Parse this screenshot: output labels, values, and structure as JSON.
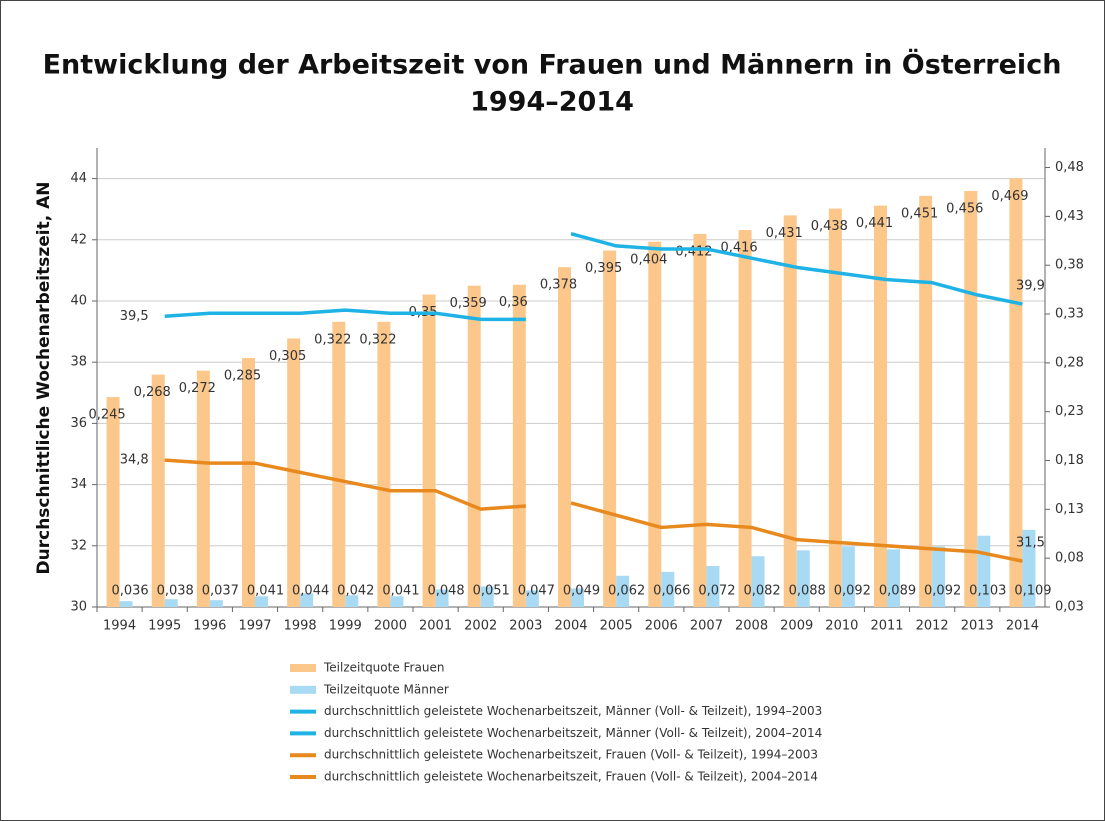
{
  "chart_data": {
    "type": "bar",
    "title": [
      "Entwicklung der Arbeitszeit von Frauen und Männern  in Österreich",
      "1994–2014"
    ],
    "ylabel": "Durchschnittliche Wochenarbeitszeit, AN",
    "categories": [
      "1994",
      "1995",
      "1996",
      "1997",
      "1998",
      "1999",
      "2000",
      "2001",
      "2002",
      "2003",
      "2004",
      "2005",
      "2006",
      "2007",
      "2008",
      "2009",
      "2010",
      "2011",
      "2012",
      "2013",
      "2014"
    ],
    "ylim": [
      30,
      45
    ],
    "yticks": [
      30,
      32,
      34,
      36,
      38,
      40,
      42,
      44
    ],
    "y2lim": [
      0.03,
      0.5
    ],
    "y2ticks": [
      {
        "value": 0.03,
        "label": "0,03"
      },
      {
        "value": 0.08,
        "label": "0,08"
      },
      {
        "value": 0.13,
        "label": "0,13"
      },
      {
        "value": 0.18,
        "label": "0,18"
      },
      {
        "value": 0.23,
        "label": "0,23"
      },
      {
        "value": 0.28,
        "label": "0,28"
      },
      {
        "value": 0.33,
        "label": "0,33"
      },
      {
        "value": 0.38,
        "label": "0,38"
      },
      {
        "value": 0.43,
        "label": "0,43"
      },
      {
        "value": 0.48,
        "label": "0,48"
      }
    ],
    "grid": true,
    "legend": "bottom",
    "series": [
      {
        "name": "Teilzeitquote Frauen",
        "type": "bar",
        "axis": "y2",
        "color": "#fbc78b",
        "values": [
          0.245,
          0.268,
          0.272,
          0.285,
          0.305,
          0.322,
          0.322,
          0.35,
          0.359,
          0.36,
          0.378,
          0.395,
          0.404,
          0.412,
          0.416,
          0.431,
          0.438,
          0.441,
          0.451,
          0.456,
          0.469
        ],
        "value_labels": [
          "0,245",
          "0,268",
          "0,272",
          "0,285",
          "0,305",
          "0,322",
          "0,322",
          "0,35",
          "0,359",
          "0,36",
          "0,378",
          "0,395",
          "0,404",
          "0,412",
          "0,416",
          "0,431",
          "0,438",
          "0,441",
          "0,451",
          "0,456",
          "0,469"
        ]
      },
      {
        "name": "Teilzeitquote Männer",
        "type": "bar",
        "axis": "y2",
        "color": "#a8daf4",
        "values": [
          0.036,
          0.038,
          0.037,
          0.041,
          0.044,
          0.042,
          0.041,
          0.048,
          0.051,
          0.047,
          0.049,
          0.062,
          0.066,
          0.072,
          0.082,
          0.088,
          0.092,
          0.089,
          0.092,
          0.103,
          0.109
        ],
        "value_labels": [
          "0,036",
          "0,038",
          "0,037",
          "0,041",
          "0,044",
          "0,042",
          "0,041",
          "0,048",
          "0,051",
          "0,047",
          "0,049",
          "0,062",
          "0,066",
          "0,072",
          "0,082",
          "0,088",
          "0,092",
          "0,089",
          "0,092",
          "0,103",
          "0,109"
        ]
      },
      {
        "name": "durchschnittlich geleistete Wochenarbeitszeit, Männer (Voll- & Teilzeit), 1994–2003",
        "type": "line",
        "color": "#1fb3e5",
        "values": [
          null,
          39.5,
          39.6,
          39.6,
          39.6,
          39.7,
          39.6,
          39.6,
          39.4,
          39.4,
          null,
          null,
          null,
          null,
          null,
          null,
          null,
          null,
          null,
          null,
          null
        ],
        "value_labels": [
          null,
          "39,5",
          null,
          null,
          null,
          null,
          null,
          null,
          null,
          null,
          null,
          null,
          null,
          null,
          null,
          null,
          null,
          null,
          null,
          null,
          null
        ]
      },
      {
        "name": "durchschnittlich geleistete Wochenarbeitszeit, Männer (Voll- & Teilzeit), 2004–2014",
        "type": "line",
        "color": "#1fb3e5",
        "values": [
          null,
          null,
          null,
          null,
          null,
          null,
          null,
          null,
          null,
          null,
          42.2,
          41.8,
          41.7,
          41.7,
          41.4,
          41.1,
          40.9,
          40.7,
          40.6,
          40.2,
          39.9
        ],
        "value_labels": [
          null,
          null,
          null,
          null,
          null,
          null,
          null,
          null,
          null,
          null,
          null,
          null,
          null,
          null,
          null,
          null,
          null,
          null,
          null,
          null,
          "39,9"
        ]
      },
      {
        "name": "durchschnittlich geleistete Wochenarbeitszeit, Frauen (Voll- & Teilzeit), 1994–2003",
        "type": "line",
        "color": "#e8891d",
        "values": [
          null,
          34.8,
          34.7,
          34.7,
          34.4,
          34.1,
          33.8,
          33.8,
          33.2,
          33.3,
          null,
          null,
          null,
          null,
          null,
          null,
          null,
          null,
          null,
          null,
          null
        ],
        "value_labels": [
          null,
          "34,8",
          null,
          null,
          null,
          null,
          null,
          null,
          null,
          null,
          null,
          null,
          null,
          null,
          null,
          null,
          null,
          null,
          null,
          null,
          null
        ]
      },
      {
        "name": "durchschnittlich geleistete Wochenarbeitszeit, Frauen (Voll- & Teilzeit), 2004–2014",
        "type": "line",
        "color": "#e8891d",
        "values": [
          null,
          null,
          null,
          null,
          null,
          null,
          null,
          null,
          null,
          null,
          33.4,
          33.0,
          32.6,
          32.7,
          32.6,
          32.2,
          32.1,
          32.0,
          31.9,
          31.8,
          31.5
        ],
        "value_labels": [
          null,
          null,
          null,
          null,
          null,
          null,
          null,
          null,
          null,
          null,
          null,
          null,
          null,
          null,
          null,
          null,
          null,
          null,
          null,
          null,
          "31,5"
        ]
      }
    ]
  }
}
